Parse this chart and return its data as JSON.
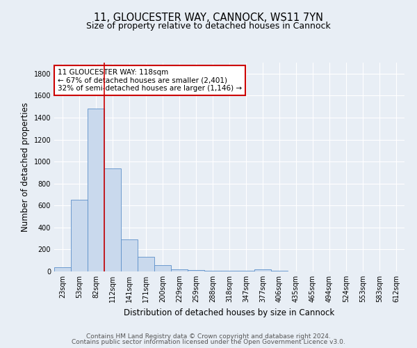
{
  "title_line1": "11, GLOUCESTER WAY, CANNOCK, WS11 7YN",
  "title_line2": "Size of property relative to detached houses in Cannock",
  "xlabel": "Distribution of detached houses by size in Cannock",
  "ylabel": "Number of detached properties",
  "bin_labels": [
    "23sqm",
    "53sqm",
    "82sqm",
    "112sqm",
    "141sqm",
    "171sqm",
    "200sqm",
    "229sqm",
    "259sqm",
    "288sqm",
    "318sqm",
    "347sqm",
    "377sqm",
    "406sqm",
    "435sqm",
    "465sqm",
    "494sqm",
    "524sqm",
    "553sqm",
    "583sqm",
    "612sqm"
  ],
  "bar_values": [
    40,
    650,
    1480,
    940,
    290,
    130,
    60,
    20,
    10,
    5,
    5,
    5,
    20,
    5,
    0,
    0,
    0,
    0,
    0,
    0,
    0
  ],
  "bar_color": "#c9d9ed",
  "bar_edge_color": "#5b8fc9",
  "red_line_index": 3,
  "annotation_title": "11 GLOUCESTER WAY: 118sqm",
  "annotation_line2": "← 67% of detached houses are smaller (2,401)",
  "annotation_line3": "32% of semi-detached houses are larger (1,146) →",
  "annotation_box_color": "#ffffff",
  "annotation_box_edge": "#cc0000",
  "property_line_color": "#cc0000",
  "ylim": [
    0,
    1900
  ],
  "yticks": [
    0,
    200,
    400,
    600,
    800,
    1000,
    1200,
    1400,
    1600,
    1800
  ],
  "background_color": "#e8eef5",
  "grid_color": "#ffffff",
  "footer_line1": "Contains HM Land Registry data © Crown copyright and database right 2024.",
  "footer_line2": "Contains public sector information licensed under the Open Government Licence v3.0.",
  "title_fontsize": 10.5,
  "subtitle_fontsize": 9,
  "axis_label_fontsize": 8.5,
  "tick_fontsize": 7,
  "annotation_fontsize": 7.5,
  "footer_fontsize": 6.5
}
